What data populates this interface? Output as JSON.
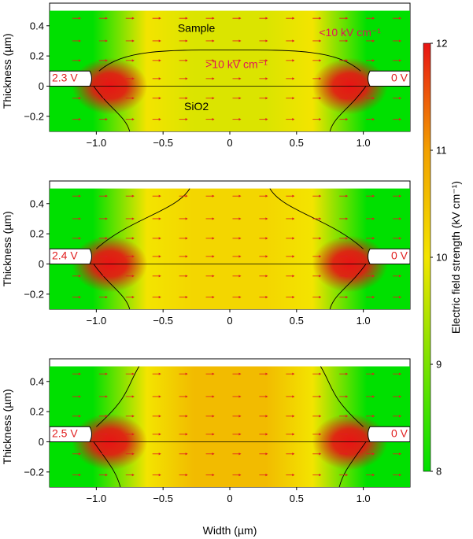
{
  "chart_data": {
    "type": "heatmap",
    "colors": {
      "low": "#00e000",
      "mid": "#f3e400",
      "orange": "#f2a000",
      "high": "#e81414",
      "arrow": "#e01e1e",
      "annotation": "#e0145a"
    },
    "xlabel": "Width (µm)",
    "xlim": [
      -1.35,
      1.35
    ],
    "xticks": [
      -1.0,
      -0.5,
      0,
      0.5,
      1.0
    ],
    "xtick_labels": [
      "−1.0",
      "−0.5",
      "0",
      "0.5",
      "1.0"
    ],
    "colorbar": {
      "label": "Electric field strength (kV cm⁻¹)",
      "range": [
        8,
        12
      ],
      "ticks": [
        "8",
        "9",
        "10",
        "11",
        "12"
      ]
    },
    "panels": [
      {
        "ylabel": "Thickness (µm)",
        "ylim": [
          -0.3,
          0.55
        ],
        "yticks": [
          -0.2,
          0,
          0.2,
          0.4
        ],
        "ytick_labels": [
          "−0.2",
          "0",
          "0.2",
          "0.4"
        ],
        "left_voltage": "2.3 V",
        "right_voltage": "0 V",
        "center_field": 9.8,
        "labels": [
          "Sample",
          "SiO2"
        ],
        "annotation_low": "<10 kV cm⁻¹",
        "annotation_high": ">10 kV cm⁻¹"
      },
      {
        "ylabel": "Thickness (µm)",
        "ylim": [
          -0.3,
          0.55
        ],
        "yticks": [
          -0.2,
          0,
          0.2,
          0.4
        ],
        "ytick_labels": [
          "−0.2",
          "0",
          "0.2",
          "0.4"
        ],
        "left_voltage": "2.4 V",
        "right_voltage": "0 V",
        "center_field": 10.2
      },
      {
        "ylabel": "Thickness (µm)",
        "ylim": [
          -0.3,
          0.55
        ],
        "yticks": [
          -0.2,
          0,
          0.2,
          0.4
        ],
        "ytick_labels": [
          "−0.2",
          "0",
          "0.2",
          "0.4"
        ],
        "left_voltage": "2.5 V",
        "right_voltage": "0 V",
        "center_field": 10.6
      }
    ]
  }
}
